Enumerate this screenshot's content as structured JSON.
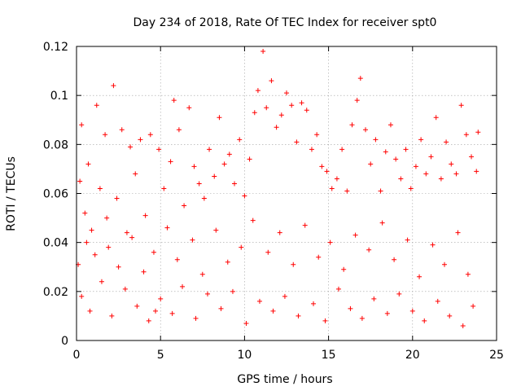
{
  "chart_data": {
    "type": "scatter",
    "title": "Day 234 of 2018, Rate Of TEC Index for receiver spt0",
    "xlabel": "GPS time / hours",
    "ylabel": "ROTI / TECUs",
    "xlim": [
      0,
      25
    ],
    "ylim": [
      0,
      0.12
    ],
    "xticks": [
      0,
      5,
      10,
      15,
      20,
      25
    ],
    "xtick_labels": [
      "0",
      "5",
      "10",
      "15",
      "20",
      "25"
    ],
    "yticks": [
      0,
      0.02,
      0.04,
      0.06,
      0.08,
      0.1,
      0.12
    ],
    "ytick_labels": [
      "0",
      "0.02",
      "0.04",
      "0.06",
      "0.08",
      "0.1",
      "0.12"
    ],
    "grid": true,
    "marker": "plus",
    "series_color": "#ff0000",
    "series": [
      {
        "name": "ROTI",
        "note": "dense scatter of ROTI samples over 0-24 h; representative points",
        "points": [
          [
            0.1,
            0.031
          ],
          [
            0.2,
            0.065
          ],
          [
            0.3,
            0.088
          ],
          [
            0.5,
            0.052
          ],
          [
            0.7,
            0.072
          ],
          [
            0.9,
            0.045
          ],
          [
            1.2,
            0.096
          ],
          [
            1.4,
            0.062
          ],
          [
            1.7,
            0.084
          ],
          [
            1.9,
            0.038
          ],
          [
            2.2,
            0.104
          ],
          [
            2.4,
            0.058
          ],
          [
            2.7,
            0.086
          ],
          [
            3.0,
            0.044
          ],
          [
            3.2,
            0.079
          ],
          [
            3.5,
            0.068
          ],
          [
            3.8,
            0.082
          ],
          [
            4.1,
            0.051
          ],
          [
            4.4,
            0.084
          ],
          [
            4.7,
            0.012
          ],
          [
            4.9,
            0.078
          ],
          [
            5.2,
            0.062
          ],
          [
            5.6,
            0.073
          ],
          [
            5.8,
            0.098
          ],
          [
            6.1,
            0.086
          ],
          [
            6.4,
            0.055
          ],
          [
            6.7,
            0.095
          ],
          [
            7.0,
            0.071
          ],
          [
            7.3,
            0.064
          ],
          [
            7.6,
            0.058
          ],
          [
            7.9,
            0.078
          ],
          [
            8.2,
            0.067
          ],
          [
            8.5,
            0.091
          ],
          [
            8.8,
            0.072
          ],
          [
            9.1,
            0.076
          ],
          [
            9.4,
            0.064
          ],
          [
            9.7,
            0.082
          ],
          [
            10.0,
            0.059
          ],
          [
            10.3,
            0.074
          ],
          [
            10.6,
            0.093
          ],
          [
            10.8,
            0.102
          ],
          [
            11.1,
            0.118
          ],
          [
            11.3,
            0.095
          ],
          [
            11.6,
            0.106
          ],
          [
            11.9,
            0.087
          ],
          [
            12.2,
            0.092
          ],
          [
            12.5,
            0.101
          ],
          [
            12.8,
            0.096
          ],
          [
            13.1,
            0.081
          ],
          [
            13.4,
            0.097
          ],
          [
            13.7,
            0.094
          ],
          [
            14.0,
            0.078
          ],
          [
            14.3,
            0.084
          ],
          [
            14.6,
            0.071
          ],
          [
            14.9,
            0.069
          ],
          [
            15.2,
            0.062
          ],
          [
            15.5,
            0.066
          ],
          [
            15.8,
            0.078
          ],
          [
            16.1,
            0.061
          ],
          [
            16.4,
            0.088
          ],
          [
            16.7,
            0.098
          ],
          [
            16.9,
            0.107
          ],
          [
            17.2,
            0.086
          ],
          [
            17.5,
            0.072
          ],
          [
            17.8,
            0.082
          ],
          [
            18.1,
            0.061
          ],
          [
            18.4,
            0.077
          ],
          [
            18.7,
            0.088
          ],
          [
            19.0,
            0.074
          ],
          [
            19.3,
            0.066
          ],
          [
            19.6,
            0.078
          ],
          [
            19.9,
            0.062
          ],
          [
            20.2,
            0.071
          ],
          [
            20.5,
            0.082
          ],
          [
            20.8,
            0.068
          ],
          [
            21.1,
            0.075
          ],
          [
            21.4,
            0.091
          ],
          [
            21.7,
            0.066
          ],
          [
            22.0,
            0.081
          ],
          [
            22.3,
            0.072
          ],
          [
            22.6,
            0.068
          ],
          [
            22.9,
            0.096
          ],
          [
            23.2,
            0.084
          ],
          [
            23.5,
            0.075
          ],
          [
            23.8,
            0.069
          ],
          [
            23.9,
            0.085
          ],
          [
            0.3,
            0.018
          ],
          [
            0.8,
            0.012
          ],
          [
            1.5,
            0.024
          ],
          [
            2.1,
            0.01
          ],
          [
            2.9,
            0.021
          ],
          [
            3.6,
            0.014
          ],
          [
            4.3,
            0.008
          ],
          [
            5.0,
            0.017
          ],
          [
            5.7,
            0.011
          ],
          [
            6.3,
            0.022
          ],
          [
            7.1,
            0.009
          ],
          [
            7.8,
            0.019
          ],
          [
            8.6,
            0.013
          ],
          [
            9.3,
            0.02
          ],
          [
            10.1,
            0.007
          ],
          [
            10.9,
            0.016
          ],
          [
            11.7,
            0.012
          ],
          [
            12.4,
            0.018
          ],
          [
            13.2,
            0.01
          ],
          [
            14.1,
            0.015
          ],
          [
            14.8,
            0.008
          ],
          [
            15.6,
            0.021
          ],
          [
            16.3,
            0.013
          ],
          [
            17.0,
            0.009
          ],
          [
            17.7,
            0.017
          ],
          [
            18.5,
            0.011
          ],
          [
            19.2,
            0.019
          ],
          [
            20.0,
            0.012
          ],
          [
            20.7,
            0.008
          ],
          [
            21.5,
            0.016
          ],
          [
            22.2,
            0.01
          ],
          [
            23.0,
            0.006
          ],
          [
            23.6,
            0.014
          ],
          [
            0.6,
            0.04
          ],
          [
            1.1,
            0.035
          ],
          [
            1.8,
            0.05
          ],
          [
            2.5,
            0.03
          ],
          [
            3.3,
            0.042
          ],
          [
            4.0,
            0.028
          ],
          [
            4.6,
            0.036
          ],
          [
            5.4,
            0.046
          ],
          [
            6.0,
            0.033
          ],
          [
            6.9,
            0.041
          ],
          [
            7.5,
            0.027
          ],
          [
            8.3,
            0.045
          ],
          [
            9.0,
            0.032
          ],
          [
            9.8,
            0.038
          ],
          [
            10.5,
            0.049
          ],
          [
            11.4,
            0.036
          ],
          [
            12.1,
            0.044
          ],
          [
            12.9,
            0.031
          ],
          [
            13.6,
            0.047
          ],
          [
            14.4,
            0.034
          ],
          [
            15.1,
            0.04
          ],
          [
            15.9,
            0.029
          ],
          [
            16.6,
            0.043
          ],
          [
            17.4,
            0.037
          ],
          [
            18.2,
            0.048
          ],
          [
            18.9,
            0.033
          ],
          [
            19.7,
            0.041
          ],
          [
            20.4,
            0.026
          ],
          [
            21.2,
            0.039
          ],
          [
            21.9,
            0.031
          ],
          [
            22.7,
            0.044
          ],
          [
            23.3,
            0.027
          ]
        ]
      }
    ]
  }
}
